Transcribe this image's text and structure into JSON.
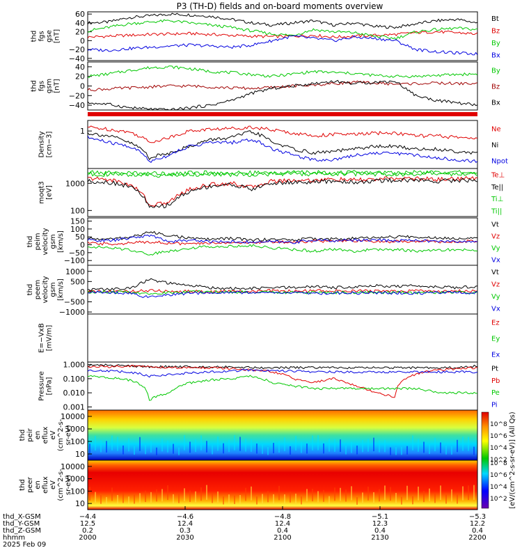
{
  "title": "P3 (TH-D) fields and on-board moments overview",
  "chart_data": [
    {
      "type": "line",
      "ylabel": [
        "thd",
        "fgs",
        "gse",
        "[nT]"
      ],
      "yticks": [
        "60",
        "40",
        "20",
        "0",
        "−20",
        "−40"
      ],
      "ylim": [
        -45,
        65
      ],
      "series": [
        {
          "name": "Bt",
          "color": "#000000",
          "values": [
            40,
            42,
            52,
            56,
            60,
            58,
            55,
            48,
            40,
            35,
            40,
            45,
            35,
            40,
            32,
            30,
            38,
            45,
            48,
            40
          ]
        },
        {
          "name": "Bz",
          "color": "#e00000",
          "values": [
            8,
            10,
            12,
            14,
            15,
            16,
            14,
            12,
            10,
            9,
            10,
            12,
            8,
            10,
            12,
            14,
            18,
            20,
            18,
            15
          ]
        },
        {
          "name": "By",
          "color": "#00c800",
          "values": [
            22,
            30,
            38,
            42,
            45,
            40,
            35,
            30,
            22,
            15,
            12,
            25,
            20,
            18,
            10,
            5,
            20,
            25,
            28,
            25
          ]
        },
        {
          "name": "Bx",
          "color": "#0000e0",
          "values": [
            -20,
            -22,
            -18,
            -15,
            -12,
            -10,
            -12,
            -15,
            -10,
            0,
            10,
            5,
            0,
            8,
            5,
            0,
            -20,
            -25,
            -28,
            -30
          ]
        }
      ]
    },
    {
      "type": "line",
      "ylabel": [
        "thd",
        "fgs",
        "gsm",
        "[nT]"
      ],
      "yticks": [
        "40",
        "20",
        "0",
        "−20",
        "−40"
      ],
      "ylim": [
        -50,
        50
      ],
      "series": [
        {
          "name": "By",
          "color": "#00c800",
          "values": [
            20,
            25,
            32,
            38,
            40,
            36,
            30,
            28,
            24,
            20,
            25,
            30,
            28,
            26,
            22,
            20,
            20,
            22,
            24,
            25
          ]
        },
        {
          "name": "Bz",
          "color": "#a00000",
          "values": [
            -8,
            -6,
            -4,
            -2,
            0,
            0,
            -2,
            -4,
            -5,
            -3,
            0,
            2,
            5,
            8,
            6,
            4,
            5,
            6,
            5,
            5
          ]
        },
        {
          "name": "Bx",
          "color": "#000000",
          "values": [
            -35,
            -38,
            -45,
            -48,
            -50,
            -45,
            -40,
            -30,
            -15,
            -5,
            0,
            5,
            10,
            5,
            8,
            10,
            -20,
            -30,
            -35,
            -40
          ]
        }
      ]
    },
    {
      "type": "line",
      "log": true,
      "ylabel": [
        "Density",
        "[cm−3]"
      ],
      "yticks": [
        "1"
      ],
      "ylim": [
        0.02,
        3
      ],
      "series": [
        {
          "name": "Ne",
          "color": "#e00000",
          "values": [
            1.5,
            1.2,
            0.9,
            0.3,
            0.5,
            1.0,
            1.2,
            1.3,
            1.5,
            1.1,
            0.8,
            0.6,
            0.7,
            0.7,
            0.8,
            0.8,
            0.6,
            0.6,
            0.5,
            0.5
          ]
        },
        {
          "name": "Ni",
          "color": "#000000",
          "values": [
            0.8,
            0.6,
            0.3,
            0.06,
            0.1,
            0.2,
            0.4,
            0.5,
            0.9,
            0.3,
            0.15,
            0.1,
            0.12,
            0.15,
            0.2,
            0.2,
            0.15,
            0.15,
            0.12,
            0.1
          ]
        },
        {
          "name": "Npot",
          "color": "#0000e0",
          "values": [
            0.5,
            0.3,
            0.2,
            0.04,
            0.08,
            0.2,
            0.3,
            0.3,
            0.4,
            0.15,
            0.08,
            0.05,
            0.05,
            0.08,
            0.1,
            0.1,
            0.08,
            0.06,
            0.05,
            0.04
          ]
        }
      ]
    },
    {
      "type": "line",
      "log": true,
      "ylabel": [
        "moqt3",
        "[eV]"
      ],
      "yticks": [
        "1000",
        "100"
      ],
      "ylim": [
        60,
        3500
      ],
      "series": [
        {
          "name": "Te⊥",
          "color": "#e00000",
          "values": [
            1500,
            1400,
            900,
            150,
            200,
            600,
            900,
            1000,
            700,
            1200,
            1300,
            1300,
            1400,
            1300,
            1400,
            1500,
            1500,
            1400,
            1500,
            1500
          ]
        },
        {
          "name": "Te||",
          "color": "#000000",
          "values": [
            1200,
            1100,
            800,
            120,
            160,
            500,
            800,
            900,
            600,
            1000,
            1100,
            1100,
            1200,
            1100,
            1200,
            1300,
            1300,
            1200,
            1300,
            1300
          ]
        },
        {
          "name": "Ti⊥",
          "color": "#00c800",
          "values": [
            2500,
            2400,
            2400,
            2300,
            2300,
            2400,
            2400,
            2400,
            2400,
            2400,
            2500,
            2500,
            2500,
            2500,
            2500,
            2500,
            2500,
            2500,
            2500,
            2500
          ]
        },
        {
          "name": "Ti||",
          "color": "#00c800",
          "values": [
            2200,
            2100,
            2100,
            2000,
            2000,
            2100,
            2100,
            2100,
            2100,
            2200,
            2200,
            2200,
            2200,
            2200,
            2200,
            2200,
            2200,
            2200,
            2200,
            2200
          ]
        }
      ]
    },
    {
      "type": "line",
      "ylabel": [
        "thd",
        "peim",
        "velocity",
        "gsm",
        "[km/s]"
      ],
      "yticks": [
        "150",
        "100",
        "50",
        "0",
        "−50",
        "−100"
      ],
      "ylim": [
        -130,
        170
      ],
      "series": [
        {
          "name": "Vt",
          "color": "#000000",
          "values": [
            40,
            35,
            45,
            80,
            60,
            40,
            35,
            40,
            30,
            35,
            30,
            40,
            35,
            40,
            45,
            50,
            50,
            45,
            40,
            50
          ]
        },
        {
          "name": "Vz",
          "color": "#e00000",
          "values": [
            10,
            5,
            10,
            20,
            10,
            5,
            10,
            15,
            10,
            20,
            15,
            25,
            20,
            25,
            20,
            20,
            25,
            20,
            20,
            25
          ]
        },
        {
          "name": "Vy",
          "color": "#00c800",
          "values": [
            -10,
            -20,
            -30,
            -60,
            -40,
            -20,
            -10,
            -10,
            -5,
            -20,
            -30,
            -40,
            -30,
            -40,
            -30,
            -30,
            -40,
            -35,
            -30,
            -40
          ]
        },
        {
          "name": "Vx",
          "color": "#0000e0",
          "values": [
            30,
            25,
            40,
            60,
            20,
            30,
            20,
            20,
            15,
            20,
            15,
            30,
            25,
            30,
            30,
            25,
            30,
            20,
            20,
            20
          ]
        }
      ]
    },
    {
      "type": "line",
      "ylabel": [
        "thd",
        "peem",
        "velocity",
        "gsm",
        "[km/s]"
      ],
      "yticks": [
        "1000",
        "500",
        "0",
        "−500",
        "−1000"
      ],
      "ylim": [
        -1100,
        1300
      ],
      "series": [
        {
          "name": "Vt",
          "color": "#000000",
          "values": [
            100,
            120,
            150,
            600,
            400,
            300,
            200,
            150,
            150,
            200,
            200,
            250,
            200,
            250,
            300,
            250,
            300,
            250,
            200,
            250
          ]
        },
        {
          "name": "Vz",
          "color": "#e00000",
          "values": [
            0,
            10,
            20,
            50,
            20,
            10,
            0,
            10,
            20,
            40,
            20,
            50,
            30,
            40,
            20,
            30,
            40,
            20,
            30,
            20
          ]
        },
        {
          "name": "Vy",
          "color": "#00c800",
          "values": [
            -10,
            -20,
            -30,
            -80,
            -50,
            -20,
            -10,
            -20,
            -20,
            -40,
            -30,
            -50,
            -40,
            -50,
            -30,
            -40,
            -50,
            -40,
            -30,
            -40
          ]
        },
        {
          "name": "Vx",
          "color": "#0000e0",
          "values": [
            -20,
            -40,
            -60,
            -300,
            -150,
            -80,
            -40,
            -30,
            -40,
            -60,
            -50,
            -80,
            -60,
            -70,
            -50,
            -60,
            -70,
            -60,
            -50,
            -60
          ]
        }
      ]
    },
    {
      "type": "line",
      "ylabel": [
        "E=−VxB",
        "[mV/m]"
      ],
      "yticks": [],
      "series": [
        {
          "name": "Ez",
          "color": "#e00000",
          "values": []
        },
        {
          "name": "Ey",
          "color": "#00c800",
          "values": []
        },
        {
          "name": "Ex",
          "color": "#0000e0",
          "values": []
        }
      ]
    },
    {
      "type": "line",
      "log": true,
      "ylabel": [
        "Pressure",
        "[nPa]"
      ],
      "yticks": [
        "1.000",
        "0.100",
        "0.010",
        "0.001"
      ],
      "ylim": [
        0.0006,
        1.5
      ],
      "series": [
        {
          "name": "Pt",
          "color": "#000000",
          "values": [
            0.9,
            0.9,
            0.8,
            0.7,
            0.7,
            0.7,
            0.7,
            0.7,
            0.6,
            0.6,
            0.6,
            0.6,
            0.6,
            0.6,
            0.6,
            0.6,
            0.6,
            0.6,
            0.6,
            0.8
          ]
        },
        {
          "name": "Pb",
          "color": "#e00000",
          "values": [
            0.7,
            0.7,
            0.8,
            0.7,
            0.6,
            0.6,
            0.6,
            0.5,
            0.4,
            0.3,
            0.1,
            0.05,
            0.1,
            0.03,
            0.01,
            0.005,
            0.2,
            0.4,
            0.5,
            0.6
          ]
        },
        {
          "name": "Pe",
          "color": "#00c800",
          "values": [
            0.15,
            0.12,
            0.08,
            0.003,
            0.01,
            0.05,
            0.08,
            0.1,
            0.15,
            0.05,
            0.03,
            0.02,
            0.02,
            0.02,
            0.02,
            0.02,
            0.02,
            0.01,
            0.01,
            0.01
          ]
        },
        {
          "name": "Pi",
          "color": "#0000e0",
          "values": [
            0.4,
            0.35,
            0.3,
            0.15,
            0.2,
            0.25,
            0.3,
            0.35,
            0.4,
            0.35,
            0.35,
            0.3,
            0.3,
            0.3,
            0.3,
            0.3,
            0.3,
            0.3,
            0.3,
            0.3
          ]
        }
      ]
    },
    {
      "type": "heatmap",
      "ylabel": [
        "thd",
        "peir",
        "en",
        "eflux",
        "eV",
        "(cm^2-s-",
        "sr-eV)"
      ],
      "yticks": [
        "10000",
        "1000",
        "100",
        "10"
      ]
    },
    {
      "type": "heatmap",
      "ylabel": [
        "thd",
        "peer",
        "en",
        "eflux",
        "eV",
        "(cm^2-s-",
        "sr-eV)"
      ],
      "yticks": [
        "10000",
        "1000",
        "100",
        "10"
      ]
    }
  ],
  "colorbar": {
    "label": "[eV/(cm^2-s-sr-eV)] (All Qs)",
    "upper_ticks": [
      "10^8",
      "10^6",
      "10^4",
      "10^2"
    ],
    "lower_ticks": [
      "10^8",
      "10^6",
      "10^4",
      "10^2"
    ]
  },
  "x_axis": {
    "row_labels": [
      "thd_X-GSM",
      "thd_Y-GSM",
      "thd_Z-GSM",
      "hhmm",
      "2025 Feb 09"
    ],
    "ticks": [
      {
        "values": [
          "−4.4",
          "12.5",
          "0.2",
          "2000"
        ]
      },
      {
        "values": [
          "−4.6",
          "12.4",
          "0.3",
          "2030"
        ]
      },
      {
        "values": [
          "−4.8",
          "12.4",
          "0.4",
          "2100"
        ]
      },
      {
        "values": [
          "−5.1",
          "12.3",
          "0.4",
          "2130"
        ]
      },
      {
        "values": [
          "−5.3",
          "12.2",
          "0.4",
          "2200"
        ]
      }
    ]
  }
}
